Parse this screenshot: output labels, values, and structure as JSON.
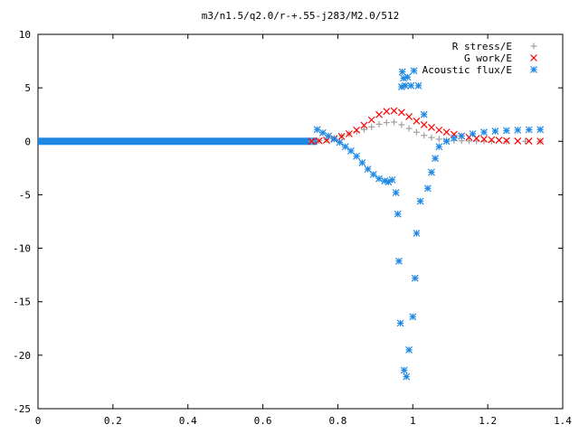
{
  "chart_data": {
    "type": "scatter",
    "title": "m3/n1.5/q2.0/r-+.55-j283/M2.0/512",
    "xlabel": "",
    "ylabel": "",
    "xlim": [
      0,
      1.4
    ],
    "ylim": [
      -25,
      10
    ],
    "x_ticks": [
      "0",
      "0.2",
      "0.4",
      "0.6",
      "0.8",
      "1",
      "1.2",
      "1.4"
    ],
    "y_ticks": [
      "10",
      "5",
      "0",
      "-5",
      "-10",
      "-15",
      "-20",
      "-25"
    ],
    "grid": false,
    "legend_position": "top-right",
    "series": [
      {
        "name": "R stress/E",
        "marker": "+",
        "color": "#a0a0a0",
        "x": [
          0.73,
          0.75,
          0.77,
          0.79,
          0.81,
          0.83,
          0.85,
          0.87,
          0.89,
          0.91,
          0.93,
          0.95,
          0.97,
          0.99,
          1.01,
          1.03,
          1.05,
          1.07,
          1.09,
          1.11,
          1.13,
          1.15,
          1.17,
          1.19,
          1.21,
          1.25,
          1.3,
          1.34
        ],
        "y": [
          0,
          0.05,
          0.15,
          0.3,
          0.5,
          0.7,
          0.9,
          1.1,
          1.35,
          1.6,
          1.75,
          1.8,
          1.55,
          1.2,
          0.85,
          0.55,
          0.35,
          0.2,
          0.12,
          0.08,
          0.05,
          0.03,
          0.02,
          0.01,
          0,
          0,
          0,
          0
        ]
      },
      {
        "name": "G work/E",
        "marker": "x",
        "color": "#ff0000",
        "x": [
          0.73,
          0.75,
          0.77,
          0.79,
          0.81,
          0.83,
          0.85,
          0.87,
          0.89,
          0.91,
          0.93,
          0.95,
          0.97,
          0.99,
          1.01,
          1.03,
          1.05,
          1.07,
          1.09,
          1.11,
          1.13,
          1.15,
          1.17,
          1.19,
          1.21,
          1.23,
          1.25,
          1.28,
          1.31,
          1.34
        ],
        "y": [
          0,
          0.05,
          0.1,
          0.25,
          0.45,
          0.7,
          1.05,
          1.5,
          2.0,
          2.5,
          2.8,
          2.85,
          2.7,
          2.3,
          1.9,
          1.55,
          1.3,
          1.05,
          0.85,
          0.65,
          0.5,
          0.38,
          0.28,
          0.2,
          0.14,
          0.1,
          0.06,
          0.03,
          0.02,
          0.01
        ]
      },
      {
        "name": "Acoustic flux/E",
        "marker": "*",
        "color": "#1e88e5",
        "x": [
          0.745,
          0.76,
          0.775,
          0.79,
          0.805,
          0.82,
          0.835,
          0.85,
          0.865,
          0.88,
          0.895,
          0.91,
          0.925,
          0.935,
          0.945,
          0.955,
          0.96,
          0.963,
          0.967,
          0.97,
          0.972,
          0.975,
          0.977,
          0.98,
          0.983,
          0.986,
          0.99,
          0.995,
          1.0,
          1.003,
          1.006,
          1.01,
          1.015,
          1.02,
          1.03,
          1.04,
          1.05,
          1.06,
          1.07,
          1.09,
          1.11,
          1.13,
          1.16,
          1.19,
          1.22,
          1.25,
          1.28,
          1.31,
          1.34
        ],
        "y": [
          1.1,
          0.8,
          0.5,
          0.2,
          -0.1,
          -0.5,
          -0.9,
          -1.4,
          -2.0,
          -2.6,
          -3.1,
          -3.5,
          -3.7,
          -3.8,
          -3.6,
          -4.8,
          -6.8,
          -11.2,
          -17.0,
          5.1,
          6.5,
          5.9,
          -21.4,
          5.2,
          -22.0,
          6.0,
          -19.5,
          5.2,
          -16.4,
          6.6,
          -12.8,
          -8.6,
          5.2,
          -5.6,
          2.5,
          -4.4,
          -2.9,
          -1.6,
          -0.5,
          0.0,
          0.3,
          0.5,
          0.7,
          0.85,
          0.95,
          1.0,
          1.05,
          1.08,
          1.1
        ]
      }
    ],
    "flat_segment": {
      "series": "Acoustic flux/E",
      "x_start": 0,
      "x_end": 0.745,
      "y": 0
    }
  }
}
